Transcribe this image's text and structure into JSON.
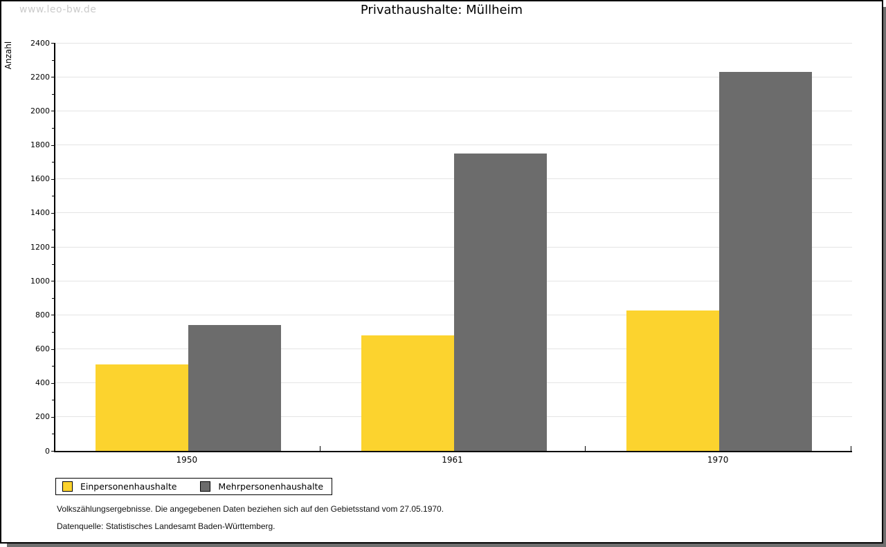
{
  "watermark": "www.leo-bw.de",
  "footer": {
    "line1": "Volkszählungsergebnisse. Die angegebenen Daten beziehen sich auf den Gebietsstand vom 27.05.1970.",
    "line2": "Datenquelle: Statistisches Landesamt Baden-Württemberg."
  },
  "colors": {
    "bar_yellow": "#FCD32E",
    "bar_gray": "#6C6C6C",
    "gridline": "#e4e4e4",
    "axis": "#000000",
    "watermark": "#cbcbcb",
    "shadow": "#6f6f6f"
  },
  "chart_data": {
    "type": "bar",
    "title": "Privathaushalte: Müllheim",
    "xlabel": "",
    "ylabel": "Anzahl",
    "categories": [
      "1950",
      "1961",
      "1970"
    ],
    "series": [
      {
        "name": "Einpersonenhaushalte",
        "color": "#FCD32E",
        "values": [
          510,
          680,
          825
        ]
      },
      {
        "name": "Mehrpersonenhaushalte",
        "color": "#6C6C6C",
        "values": [
          740,
          1750,
          2230
        ]
      }
    ],
    "ylim": [
      0,
      2400
    ],
    "ytick_step": 200,
    "minor_tick_step": 100,
    "grid": true,
    "legend_position": "bottom-left"
  }
}
